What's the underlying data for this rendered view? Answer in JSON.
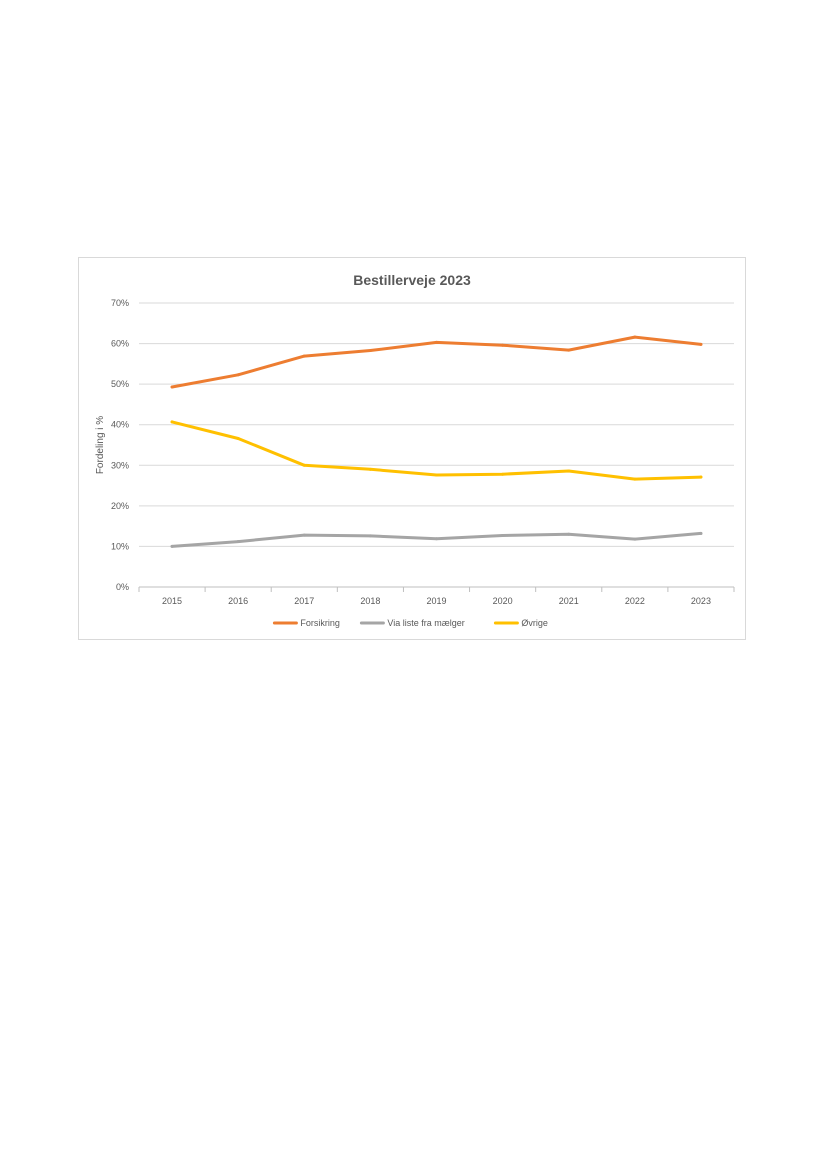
{
  "chart_data": {
    "type": "line",
    "title": "Bestillerveje 2023",
    "xlabel": "",
    "ylabel": "Fordeling i %",
    "categories": [
      "2015",
      "2016",
      "2017",
      "2018",
      "2019",
      "2020",
      "2021",
      "2022",
      "2023"
    ],
    "ylim": [
      0,
      70
    ],
    "yticks": [
      0,
      10,
      20,
      30,
      40,
      50,
      60,
      70
    ],
    "ytick_labels": [
      "0%",
      "10%",
      "20%",
      "30%",
      "40%",
      "50%",
      "60%",
      "70%"
    ],
    "grid": true,
    "legend_position": "bottom",
    "series": [
      {
        "name": "Forsikring",
        "color": "#ED7D31",
        "values": [
          49.3,
          52.3,
          56.9,
          58.3,
          60.3,
          59.6,
          58.4,
          61.6,
          59.8
        ]
      },
      {
        "name": "Via liste fra mælger",
        "color": "#A5A5A5",
        "values": [
          10.0,
          11.2,
          12.8,
          12.6,
          11.9,
          12.7,
          13.0,
          11.8,
          13.2
        ]
      },
      {
        "name": "Øvrige",
        "color": "#FFC000",
        "values": [
          40.7,
          36.6,
          30.0,
          29.0,
          27.6,
          27.8,
          28.6,
          26.6,
          27.1
        ]
      }
    ]
  }
}
